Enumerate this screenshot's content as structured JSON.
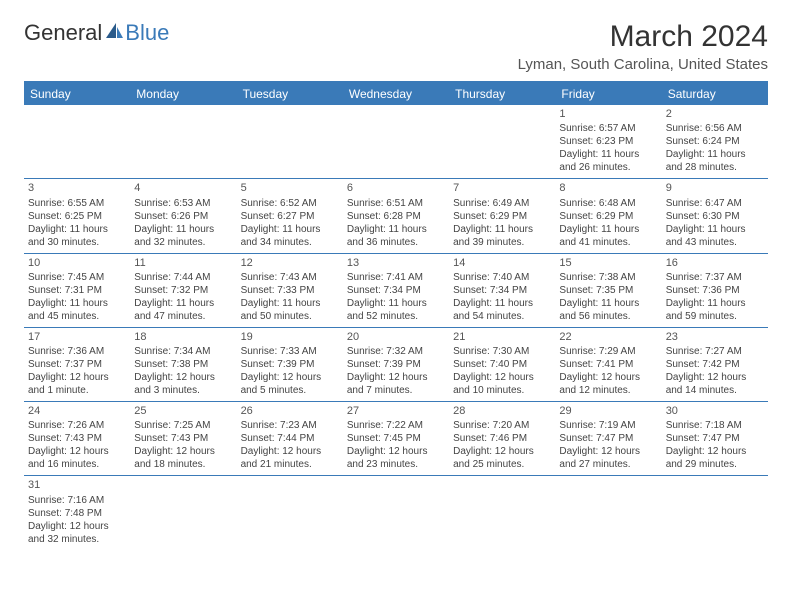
{
  "brand": {
    "name_part1": "General",
    "name_part2": "Blue"
  },
  "title": "March 2024",
  "location": "Lyman, South Carolina, United States",
  "colors": {
    "header_bg": "#3a7ab8",
    "header_text": "#ffffff",
    "divider": "#3a7ab8",
    "text": "#444444",
    "title_text": "#333333",
    "background": "#ffffff"
  },
  "weekdays": [
    "Sunday",
    "Monday",
    "Tuesday",
    "Wednesday",
    "Thursday",
    "Friday",
    "Saturday"
  ],
  "weeks": [
    [
      null,
      null,
      null,
      null,
      null,
      {
        "num": "1",
        "sunrise": "Sunrise: 6:57 AM",
        "sunset": "Sunset: 6:23 PM",
        "daylight": "Daylight: 11 hours and 26 minutes."
      },
      {
        "num": "2",
        "sunrise": "Sunrise: 6:56 AM",
        "sunset": "Sunset: 6:24 PM",
        "daylight": "Daylight: 11 hours and 28 minutes."
      }
    ],
    [
      {
        "num": "3",
        "sunrise": "Sunrise: 6:55 AM",
        "sunset": "Sunset: 6:25 PM",
        "daylight": "Daylight: 11 hours and 30 minutes."
      },
      {
        "num": "4",
        "sunrise": "Sunrise: 6:53 AM",
        "sunset": "Sunset: 6:26 PM",
        "daylight": "Daylight: 11 hours and 32 minutes."
      },
      {
        "num": "5",
        "sunrise": "Sunrise: 6:52 AM",
        "sunset": "Sunset: 6:27 PM",
        "daylight": "Daylight: 11 hours and 34 minutes."
      },
      {
        "num": "6",
        "sunrise": "Sunrise: 6:51 AM",
        "sunset": "Sunset: 6:28 PM",
        "daylight": "Daylight: 11 hours and 36 minutes."
      },
      {
        "num": "7",
        "sunrise": "Sunrise: 6:49 AM",
        "sunset": "Sunset: 6:29 PM",
        "daylight": "Daylight: 11 hours and 39 minutes."
      },
      {
        "num": "8",
        "sunrise": "Sunrise: 6:48 AM",
        "sunset": "Sunset: 6:29 PM",
        "daylight": "Daylight: 11 hours and 41 minutes."
      },
      {
        "num": "9",
        "sunrise": "Sunrise: 6:47 AM",
        "sunset": "Sunset: 6:30 PM",
        "daylight": "Daylight: 11 hours and 43 minutes."
      }
    ],
    [
      {
        "num": "10",
        "sunrise": "Sunrise: 7:45 AM",
        "sunset": "Sunset: 7:31 PM",
        "daylight": "Daylight: 11 hours and 45 minutes."
      },
      {
        "num": "11",
        "sunrise": "Sunrise: 7:44 AM",
        "sunset": "Sunset: 7:32 PM",
        "daylight": "Daylight: 11 hours and 47 minutes."
      },
      {
        "num": "12",
        "sunrise": "Sunrise: 7:43 AM",
        "sunset": "Sunset: 7:33 PM",
        "daylight": "Daylight: 11 hours and 50 minutes."
      },
      {
        "num": "13",
        "sunrise": "Sunrise: 7:41 AM",
        "sunset": "Sunset: 7:34 PM",
        "daylight": "Daylight: 11 hours and 52 minutes."
      },
      {
        "num": "14",
        "sunrise": "Sunrise: 7:40 AM",
        "sunset": "Sunset: 7:34 PM",
        "daylight": "Daylight: 11 hours and 54 minutes."
      },
      {
        "num": "15",
        "sunrise": "Sunrise: 7:38 AM",
        "sunset": "Sunset: 7:35 PM",
        "daylight": "Daylight: 11 hours and 56 minutes."
      },
      {
        "num": "16",
        "sunrise": "Sunrise: 7:37 AM",
        "sunset": "Sunset: 7:36 PM",
        "daylight": "Daylight: 11 hours and 59 minutes."
      }
    ],
    [
      {
        "num": "17",
        "sunrise": "Sunrise: 7:36 AM",
        "sunset": "Sunset: 7:37 PM",
        "daylight": "Daylight: 12 hours and 1 minute."
      },
      {
        "num": "18",
        "sunrise": "Sunrise: 7:34 AM",
        "sunset": "Sunset: 7:38 PM",
        "daylight": "Daylight: 12 hours and 3 minutes."
      },
      {
        "num": "19",
        "sunrise": "Sunrise: 7:33 AM",
        "sunset": "Sunset: 7:39 PM",
        "daylight": "Daylight: 12 hours and 5 minutes."
      },
      {
        "num": "20",
        "sunrise": "Sunrise: 7:32 AM",
        "sunset": "Sunset: 7:39 PM",
        "daylight": "Daylight: 12 hours and 7 minutes."
      },
      {
        "num": "21",
        "sunrise": "Sunrise: 7:30 AM",
        "sunset": "Sunset: 7:40 PM",
        "daylight": "Daylight: 12 hours and 10 minutes."
      },
      {
        "num": "22",
        "sunrise": "Sunrise: 7:29 AM",
        "sunset": "Sunset: 7:41 PM",
        "daylight": "Daylight: 12 hours and 12 minutes."
      },
      {
        "num": "23",
        "sunrise": "Sunrise: 7:27 AM",
        "sunset": "Sunset: 7:42 PM",
        "daylight": "Daylight: 12 hours and 14 minutes."
      }
    ],
    [
      {
        "num": "24",
        "sunrise": "Sunrise: 7:26 AM",
        "sunset": "Sunset: 7:43 PM",
        "daylight": "Daylight: 12 hours and 16 minutes."
      },
      {
        "num": "25",
        "sunrise": "Sunrise: 7:25 AM",
        "sunset": "Sunset: 7:43 PM",
        "daylight": "Daylight: 12 hours and 18 minutes."
      },
      {
        "num": "26",
        "sunrise": "Sunrise: 7:23 AM",
        "sunset": "Sunset: 7:44 PM",
        "daylight": "Daylight: 12 hours and 21 minutes."
      },
      {
        "num": "27",
        "sunrise": "Sunrise: 7:22 AM",
        "sunset": "Sunset: 7:45 PM",
        "daylight": "Daylight: 12 hours and 23 minutes."
      },
      {
        "num": "28",
        "sunrise": "Sunrise: 7:20 AM",
        "sunset": "Sunset: 7:46 PM",
        "daylight": "Daylight: 12 hours and 25 minutes."
      },
      {
        "num": "29",
        "sunrise": "Sunrise: 7:19 AM",
        "sunset": "Sunset: 7:47 PM",
        "daylight": "Daylight: 12 hours and 27 minutes."
      },
      {
        "num": "30",
        "sunrise": "Sunrise: 7:18 AM",
        "sunset": "Sunset: 7:47 PM",
        "daylight": "Daylight: 12 hours and 29 minutes."
      }
    ],
    [
      {
        "num": "31",
        "sunrise": "Sunrise: 7:16 AM",
        "sunset": "Sunset: 7:48 PM",
        "daylight": "Daylight: 12 hours and 32 minutes."
      },
      null,
      null,
      null,
      null,
      null,
      null
    ]
  ]
}
